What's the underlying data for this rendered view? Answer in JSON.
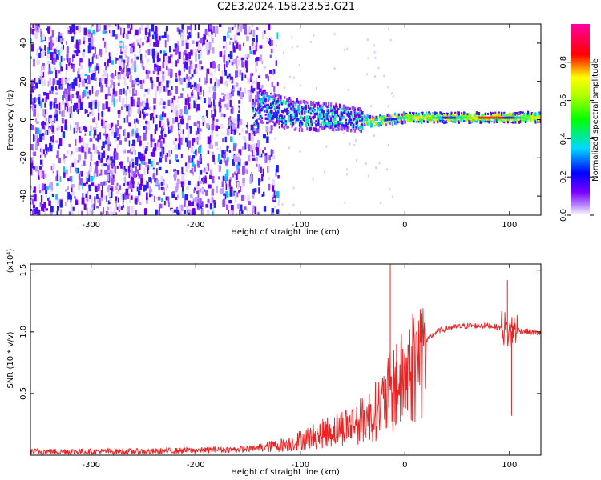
{
  "title": "C2E3.2024.158.23.53.G21",
  "chart_data": [
    {
      "type": "heatmap",
      "xlabel": "Height of straight line (km)",
      "ylabel": "Frequency (Hz)",
      "xlim": [
        -358,
        130
      ],
      "ylim": [
        -50,
        50
      ],
      "xticks": [
        -300,
        -200,
        -100,
        0,
        100
      ],
      "yticks": [
        -40,
        -20,
        0,
        20,
        40
      ],
      "colorbar": {
        "label": "Normalized spectral amplitude",
        "range": [
          0.0,
          1.0
        ],
        "ticks": [
          0.0,
          0.2,
          0.4,
          0.6,
          0.8
        ],
        "tick_labels": [
          "0.0",
          "0.2",
          "0.4",
          "0.6",
          "0.8"
        ],
        "colors": [
          "#ffffff",
          "#7b00ff",
          "#0000ff",
          "#00ffff",
          "#00ff00",
          "#ffff00",
          "#ff0000",
          "#ff00a0"
        ]
      },
      "line_center_hz": [
        {
          "x": -140,
          "f": 8
        },
        {
          "x": -120,
          "f": 4
        },
        {
          "x": -100,
          "f": 2
        },
        {
          "x": -60,
          "f": 1
        },
        {
          "x": -30,
          "f": -1
        },
        {
          "x": 0,
          "f": 1
        },
        {
          "x": 50,
          "f": 1
        },
        {
          "x": 100,
          "f": 1
        },
        {
          "x": 130,
          "f": 1
        }
      ]
    },
    {
      "type": "line",
      "xlabel": "Height of straight line (km)",
      "ylabel": "SNR (10 * v/v)",
      "y_multiplier": "(x10⁴)",
      "xlim": [
        -358,
        130
      ],
      "ylim": [
        0,
        1.55
      ],
      "xticks": [
        -300,
        -200,
        -100,
        0,
        100
      ],
      "yticks": [
        0.5,
        1.0,
        1.5
      ],
      "ytick_labels": [
        "0.5",
        "1.0",
        "1.5"
      ],
      "series": [
        {
          "color": "#ee2222",
          "x": [
            -358,
            -300,
            -250,
            -200,
            -150,
            -130,
            -110,
            -100,
            -80,
            -60,
            -40,
            -30,
            -20,
            -12,
            -5,
            0,
            10,
            20,
            30,
            40,
            60,
            80,
            95,
            100,
            105,
            110,
            130
          ],
          "y": [
            0.03,
            0.03,
            0.03,
            0.04,
            0.05,
            0.07,
            0.1,
            0.13,
            0.18,
            0.24,
            0.3,
            0.36,
            0.45,
            0.55,
            0.6,
            0.68,
            0.8,
            0.92,
            1.0,
            1.03,
            1.05,
            1.05,
            1.03,
            0.98,
            1.04,
            1.01,
            0.99
          ]
        }
      ],
      "spikes": [
        {
          "x": -14,
          "y": 1.58
        },
        {
          "x": -8,
          "y": 0.9
        },
        {
          "x": 98,
          "y": 1.42
        },
        {
          "x": 102,
          "y": 0.32
        }
      ]
    }
  ]
}
